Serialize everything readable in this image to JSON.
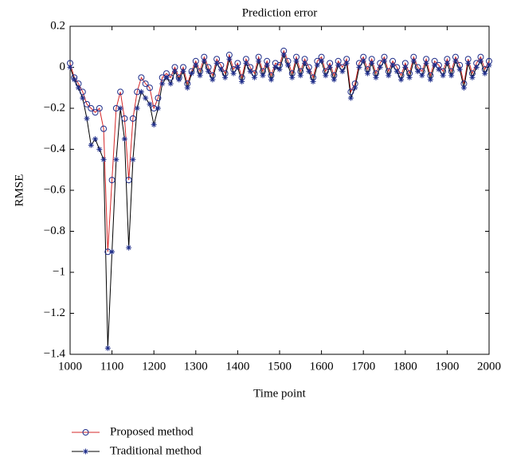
{
  "chart_data": {
    "type": "line",
    "title": "Prediction error",
    "x_label": "Time point",
    "y_label": "RMSE",
    "x": [
      1000,
      1010,
      1020,
      1030,
      1040,
      1050,
      1060,
      1070,
      1080,
      1090,
      1100,
      1110,
      1120,
      1130,
      1140,
      1150,
      1160,
      1170,
      1180,
      1190,
      1200,
      1210,
      1220,
      1230,
      1240,
      1250,
      1260,
      1270,
      1280,
      1290,
      1300,
      1310,
      1320,
      1330,
      1340,
      1350,
      1360,
      1370,
      1380,
      1390,
      1400,
      1410,
      1420,
      1430,
      1440,
      1450,
      1460,
      1470,
      1480,
      1490,
      1500,
      1510,
      1520,
      1530,
      1540,
      1550,
      1560,
      1570,
      1580,
      1590,
      1600,
      1610,
      1620,
      1630,
      1640,
      1650,
      1660,
      1670,
      1680,
      1690,
      1700,
      1710,
      1720,
      1730,
      1740,
      1750,
      1760,
      1770,
      1780,
      1790,
      1800,
      1810,
      1820,
      1830,
      1840,
      1850,
      1860,
      1870,
      1880,
      1890,
      1900,
      1910,
      1920,
      1930,
      1940,
      1950,
      1960,
      1970,
      1980,
      1990,
      2000
    ],
    "series": [
      {
        "name": "Proposed method",
        "color": "#d62728",
        "marker": "circle",
        "marker_color": "#1f2e8a",
        "values": [
          0.02,
          -0.05,
          -0.08,
          -0.12,
          -0.18,
          -0.2,
          -0.22,
          -0.2,
          -0.3,
          -0.9,
          -0.55,
          -0.2,
          -0.12,
          -0.25,
          -0.55,
          -0.25,
          -0.12,
          -0.05,
          -0.08,
          -0.1,
          -0.2,
          -0.15,
          -0.05,
          -0.03,
          -0.05,
          0.0,
          -0.05,
          0.0,
          -0.08,
          -0.02,
          0.03,
          -0.02,
          0.05,
          0.0,
          -0.04,
          0.04,
          0.01,
          -0.03,
          0.06,
          -0.01,
          0.02,
          -0.05,
          0.04,
          0.0,
          -0.03,
          0.05,
          -0.02,
          0.03,
          -0.04,
          0.02,
          0.01,
          0.08,
          0.03,
          -0.03,
          0.05,
          -0.02,
          0.04,
          0.0,
          -0.05,
          0.03,
          0.05,
          -0.02,
          0.02,
          -0.04,
          0.03,
          0.0,
          0.04,
          -0.12,
          -0.08,
          0.02,
          0.05,
          -0.01,
          0.04,
          -0.03,
          0.02,
          0.05,
          -0.02,
          0.03,
          0.0,
          -0.04,
          0.02,
          -0.03,
          0.05,
          0.0,
          -0.02,
          0.04,
          -0.04,
          0.03,
          0.01,
          -0.02,
          0.04,
          -0.02,
          0.05,
          0.01,
          -0.08,
          0.04,
          -0.03,
          0.02,
          0.05,
          -0.01,
          0.03
        ]
      },
      {
        "name": "Traditional method",
        "color": "#000000",
        "marker": "star",
        "marker_color": "#1f2e8a",
        "values": [
          0.0,
          -0.06,
          -0.1,
          -0.15,
          -0.25,
          -0.38,
          -0.35,
          -0.4,
          -0.45,
          -1.37,
          -0.9,
          -0.45,
          -0.2,
          -0.35,
          -0.88,
          -0.45,
          -0.2,
          -0.12,
          -0.15,
          -0.18,
          -0.28,
          -0.2,
          -0.08,
          -0.05,
          -0.08,
          -0.02,
          -0.06,
          -0.02,
          -0.1,
          -0.03,
          0.01,
          -0.04,
          0.03,
          -0.02,
          -0.06,
          0.02,
          -0.01,
          -0.05,
          0.04,
          -0.03,
          0.0,
          -0.07,
          0.02,
          -0.02,
          -0.05,
          0.03,
          -0.04,
          0.01,
          -0.06,
          0.0,
          -0.01,
          0.06,
          0.01,
          -0.05,
          0.03,
          -0.04,
          0.02,
          -0.02,
          -0.07,
          0.01,
          0.03,
          -0.04,
          0.0,
          -0.06,
          0.01,
          -0.02,
          0.02,
          -0.15,
          -0.1,
          0.0,
          0.03,
          -0.03,
          0.02,
          -0.05,
          0.0,
          0.03,
          -0.04,
          0.01,
          -0.02,
          -0.06,
          0.0,
          -0.05,
          0.03,
          -0.02,
          -0.04,
          0.02,
          -0.06,
          0.01,
          -0.01,
          -0.04,
          0.02,
          -0.04,
          0.03,
          -0.01,
          -0.1,
          0.02,
          -0.05,
          0.0,
          0.03,
          -0.03,
          0.01
        ]
      }
    ],
    "xlim": [
      1000,
      2000
    ],
    "xticks": [
      1000,
      1100,
      1200,
      1300,
      1400,
      1500,
      1600,
      1700,
      1800,
      1900,
      2000
    ],
    "ylim": [
      -1.4,
      0.2
    ],
    "yticks": [
      0.2,
      0,
      {
        "value": -0.2,
        "label": "−0.2"
      },
      {
        "value": -0.4,
        "label": "−0.4"
      },
      {
        "value": -0.6,
        "label": "−0.6"
      },
      {
        "value": -0.8,
        "label": "−0.8"
      },
      {
        "value": -1,
        "label": "−1"
      },
      {
        "value": -1.2,
        "label": "−1.2"
      },
      {
        "value": -1.4,
        "label": "−1.4"
      }
    ],
    "grid": false,
    "legend": "bottom"
  }
}
